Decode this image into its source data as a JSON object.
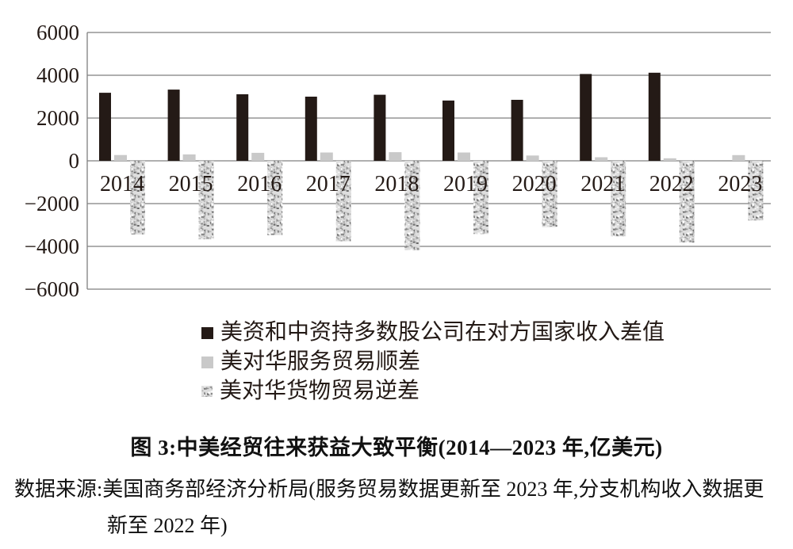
{
  "chart": {
    "title": "图 3:中美经贸往来获益大致平衡(2014—2023 年,亿美元)",
    "source_line1": "数据来源:美国商务部经济分析局(服务贸易数据更新至 2023 年,分支机构收入数据更",
    "source_line2": "新至 2022 年)"
  },
  "chart_data": {
    "type": "bar",
    "title": "图 3:中美经贸往来获益大致平衡(2014—2023 年,亿美元)",
    "unit": "亿美元",
    "categories": [
      "2014",
      "2015",
      "2016",
      "2017",
      "2018",
      "2019",
      "2020",
      "2021",
      "2022",
      "2023"
    ],
    "series": [
      {
        "key": "income-diff",
        "name": "美资和中资持多数股公司在对方国家收入差值",
        "style": "solid",
        "color": "#241a16",
        "values": [
          3180,
          3330,
          3110,
          3000,
          3090,
          2820,
          2850,
          4060,
          4120,
          null
        ]
      },
      {
        "key": "services-surplus",
        "name": "美对华服务贸易顺差",
        "style": "solid",
        "color": "#c9c9c9",
        "values": [
          270,
          300,
          375,
          390,
          405,
          390,
          250,
          165,
          120,
          265
        ]
      },
      {
        "key": "goods-deficit",
        "name": "美对华货物贸易逆差",
        "style": "textured",
        "color": "#dedede",
        "values": [
          -3440,
          -3670,
          -3470,
          -3760,
          -4180,
          -3420,
          -3100,
          -3530,
          -3820,
          -2790
        ]
      }
    ],
    "ylim": [
      -6000,
      6000
    ],
    "ytick_step": 2000,
    "ytick_labels": [
      "6000",
      "4000",
      "2000",
      "0",
      "−2000",
      "−4000",
      "−6000"
    ],
    "grid": true,
    "legend_position": "below-left",
    "axis_color": "#7f7f7f",
    "text_color": "#241a16"
  }
}
